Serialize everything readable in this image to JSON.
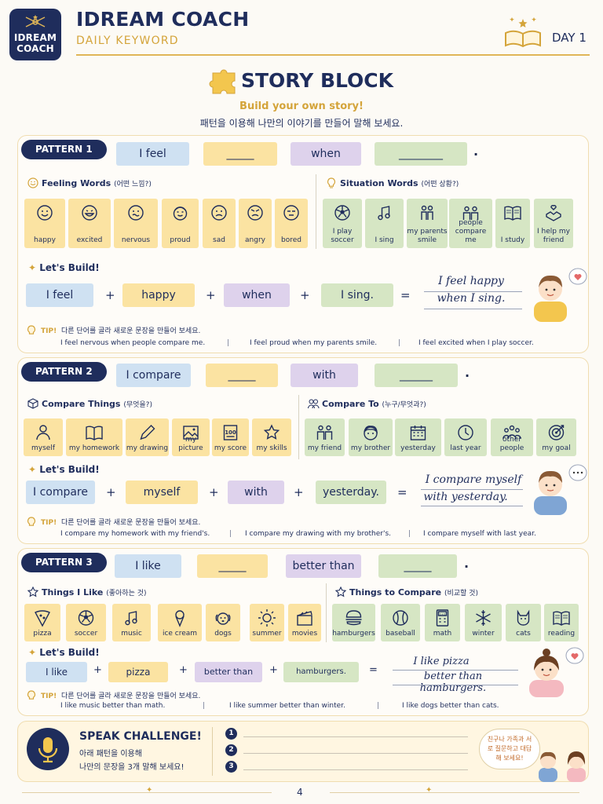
{
  "header": {
    "logo_line1": "IDREAM",
    "logo_line2": "COACH",
    "title": "IDREAM COACH",
    "subtitle": "DAILY KEYWORD",
    "day": "DAY 1"
  },
  "hero": {
    "title": "STORY BLOCK",
    "subtitle": "Build your own story!",
    "subtitle_ko": "패턴을 이용해 나만의 이야기를 만들어 말해 보세요."
  },
  "patterns": [
    {
      "badge": "PATTERN 1",
      "pieces": [
        "I feel",
        "_____",
        "when",
        "________"
      ],
      "end": ".",
      "left_label": "Feeling Words",
      "left_label_ko": "(어떤 느낌?)",
      "right_label": "Situation Words",
      "right_label_ko": "(어떤 상황?)",
      "left_cards": [
        {
          "text": "happy",
          "icon": "happy-face-icon"
        },
        {
          "text": "excited",
          "icon": "excited-face-icon"
        },
        {
          "text": "nervous",
          "icon": "nervous-face-icon"
        },
        {
          "text": "proud",
          "icon": "proud-face-icon"
        },
        {
          "text": "sad",
          "icon": "sad-face-icon"
        },
        {
          "text": "angry",
          "icon": "angry-face-icon"
        },
        {
          "text": "bored",
          "icon": "bored-face-icon"
        }
      ],
      "right_cards": [
        {
          "text": "I play soccer",
          "icon": "soccer-ball-icon"
        },
        {
          "text": "I sing",
          "icon": "music-note-icon"
        },
        {
          "text": "my parents smile",
          "icon": "parents-icon"
        },
        {
          "text": "people compare me",
          "icon": "people-icon"
        },
        {
          "text": "I study",
          "icon": "book-icon"
        },
        {
          "text": "I help my friend",
          "icon": "helping-hands-icon"
        }
      ],
      "build_label": "Let's Build!",
      "build": [
        "I feel",
        "happy",
        "when",
        "I sing."
      ],
      "answer1": "I feel happy",
      "answer2": "when I sing.",
      "tip_label": "TIP!",
      "tip": "다른 단어를 골라 새로운 문장을 만들어 보세요.",
      "examples": [
        "I feel nervous when people compare me.",
        "I feel proud when my parents smile.",
        "I feel excited when I play soccer."
      ]
    },
    {
      "badge": "PATTERN 2",
      "pieces": [
        "I compare",
        "_____",
        "with",
        "______"
      ],
      "end": ".",
      "left_label": "Compare Things",
      "left_label_ko": "(무엇을?)",
      "right_label": "Compare To",
      "right_label_ko": "(누구/무엇과?)",
      "left_cards": [
        {
          "text": "myself",
          "icon": "person-icon"
        },
        {
          "text": "my homework",
          "icon": "open-book-icon"
        },
        {
          "text": "my drawing",
          "icon": "pencil-icon"
        },
        {
          "text": "my picture",
          "icon": "picture-icon"
        },
        {
          "text": "my score",
          "icon": "score-100-icon"
        },
        {
          "text": "my skills",
          "icon": "star-icon"
        }
      ],
      "right_cards": [
        {
          "text": "my friend",
          "icon": "friends-icon"
        },
        {
          "text": "my brother",
          "icon": "boy-face-icon"
        },
        {
          "text": "yesterday",
          "icon": "calendar-icon"
        },
        {
          "text": "last year",
          "icon": "clock-icon"
        },
        {
          "text": "other people",
          "icon": "group-icon"
        },
        {
          "text": "my goal",
          "icon": "target-icon"
        }
      ],
      "build_label": "Let's Build!",
      "build": [
        "I compare",
        "myself",
        "with",
        "yesterday."
      ],
      "answer1": "I compare myself",
      "answer2": "with yesterday.",
      "tip_label": "TIP!",
      "tip": "다른 단어를 골라 새로운 문장을 만들어 보세요.",
      "examples": [
        "I compare my homework with my friend's.",
        "I compare my drawing with my brother's.",
        "I compare myself with last year."
      ]
    },
    {
      "badge": "PATTERN 3",
      "pieces": [
        "I like",
        "_____",
        "better than",
        "_____"
      ],
      "end": ".",
      "left_label": "Things I Like",
      "left_label_ko": "(좋아하는 것)",
      "right_label": "Things to Compare",
      "right_label_ko": "(비교할 것)",
      "left_cards": [
        {
          "text": "pizza",
          "icon": "pizza-icon"
        },
        {
          "text": "soccer",
          "icon": "soccer-ball-icon"
        },
        {
          "text": "music",
          "icon": "music-note-icon"
        },
        {
          "text": "ice cream",
          "icon": "ice-cream-icon"
        },
        {
          "text": "dogs",
          "icon": "dog-icon"
        },
        {
          "text": "summer",
          "icon": "sun-icon"
        },
        {
          "text": "movies",
          "icon": "clapperboard-icon"
        }
      ],
      "right_cards": [
        {
          "text": "hamburgers",
          "icon": "hamburger-icon"
        },
        {
          "text": "baseball",
          "icon": "baseball-icon"
        },
        {
          "text": "math",
          "icon": "calculator-icon"
        },
        {
          "text": "winter",
          "icon": "snowflake-icon"
        },
        {
          "text": "cats",
          "icon": "cat-icon"
        },
        {
          "text": "reading",
          "icon": "book-icon"
        }
      ],
      "build_label": "Let's Build!",
      "build": [
        "I like",
        "pizza",
        "better than",
        "hamburgers."
      ],
      "answer1": "I like pizza",
      "answer2": "better than hamburgers.",
      "tip_label": "TIP!",
      "tip": "다른 단어를 골라 새로운 문장을 만들어 보세요.",
      "examples": [
        "I like music better than math.",
        "I like summer better than winter.",
        "I like dogs better than cats."
      ]
    }
  ],
  "speak": {
    "title": "SPEAK CHALLENGE!",
    "line1": "아래 패턴을 이용해",
    "line2": "나만의 문장을 3개 말해 보세요!",
    "numbers": [
      "1",
      "2",
      "3"
    ],
    "bubble": "친구나 가족과 서로 질문하고 대답해 보세요!"
  },
  "footer": {
    "page": "4"
  },
  "colors": {
    "navy": "#1f2d5c",
    "gold": "#d4a43a",
    "blue": "#cfe1f2",
    "yellow": "#fbe3a2",
    "purple": "#ded2ec",
    "green": "#d6e6c4"
  }
}
